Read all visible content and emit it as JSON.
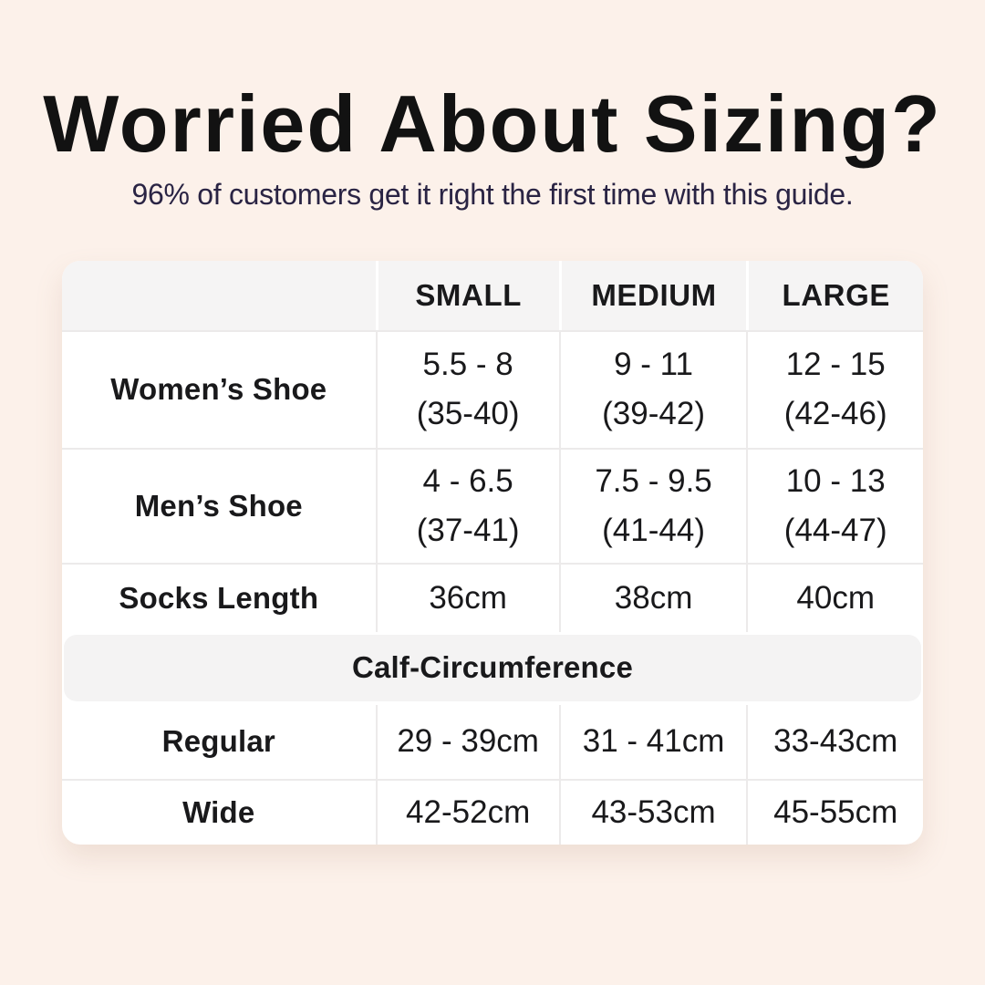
{
  "header": {
    "title": "Worried About Sizing?",
    "subtitle": "96% of customers get it right the first time with this guide."
  },
  "table": {
    "size_headers": [
      "SMALL",
      "MEDIUM",
      "LARGE"
    ],
    "shoe_rows": [
      {
        "label": "Women’s Shoe",
        "cells": [
          {
            "main": "5.5 - 8",
            "sub": "(35-40)"
          },
          {
            "main": "9 - 11",
            "sub": "(39-42)"
          },
          {
            "main": "12 - 15",
            "sub": "(42-46)"
          }
        ]
      },
      {
        "label": "Men’s Shoe",
        "cells": [
          {
            "main": "4 - 6.5",
            "sub": "(37-41)"
          },
          {
            "main": "7.5 - 9.5",
            "sub": "(41-44)"
          },
          {
            "main": "10 - 13",
            "sub": "(44-47)"
          }
        ]
      }
    ],
    "socks_row": {
      "label": "Socks Length",
      "cells": [
        "36cm",
        "38cm",
        "40cm"
      ]
    },
    "section_header": "Calf-Circumference",
    "calf_rows": [
      {
        "label": "Regular",
        "cells": [
          "29 - 39cm",
          "31 - 41cm",
          "33-43cm"
        ]
      },
      {
        "label": "Wide",
        "cells": [
          "42-52cm",
          "43-53cm",
          "45-55cm"
        ]
      }
    ]
  },
  "colors": {
    "page_background": "#fcf1ea",
    "table_background": "#ffffff",
    "header_band_gray": "#f5f4f4",
    "section_band_gray": "#f4f3f3",
    "divider_gray": "#eceaea",
    "title_text": "#121212",
    "subtitle_navy": "#2a2444",
    "table_text": "#19191b"
  },
  "chart_data": {
    "type": "table",
    "title": "Worried About Sizing?",
    "subtitle": "96% of customers get it right the first time with this guide.",
    "columns": [
      "",
      "SMALL",
      "MEDIUM",
      "LARGE"
    ],
    "rows": [
      [
        "Women’s Shoe",
        "5.5 - 8 (35-40)",
        "9 - 11 (39-42)",
        "12 - 15 (42-46)"
      ],
      [
        "Men’s Shoe",
        "4 - 6.5 (37-41)",
        "7.5 - 9.5 (41-44)",
        "10 - 13 (44-47)"
      ],
      [
        "Socks Length",
        "36cm",
        "38cm",
        "40cm"
      ],
      [
        "Calf-Circumference",
        "",
        "",
        ""
      ],
      [
        "Regular",
        "29 - 39cm",
        "31 - 41cm",
        "33-43cm"
      ],
      [
        "Wide",
        "42-52cm",
        "43-53cm",
        "45-55cm"
      ]
    ],
    "layout_hints": {
      "section_row_index": 3,
      "section_spans_full_width": true,
      "grid": "off",
      "percent_stat": "96%"
    }
  }
}
